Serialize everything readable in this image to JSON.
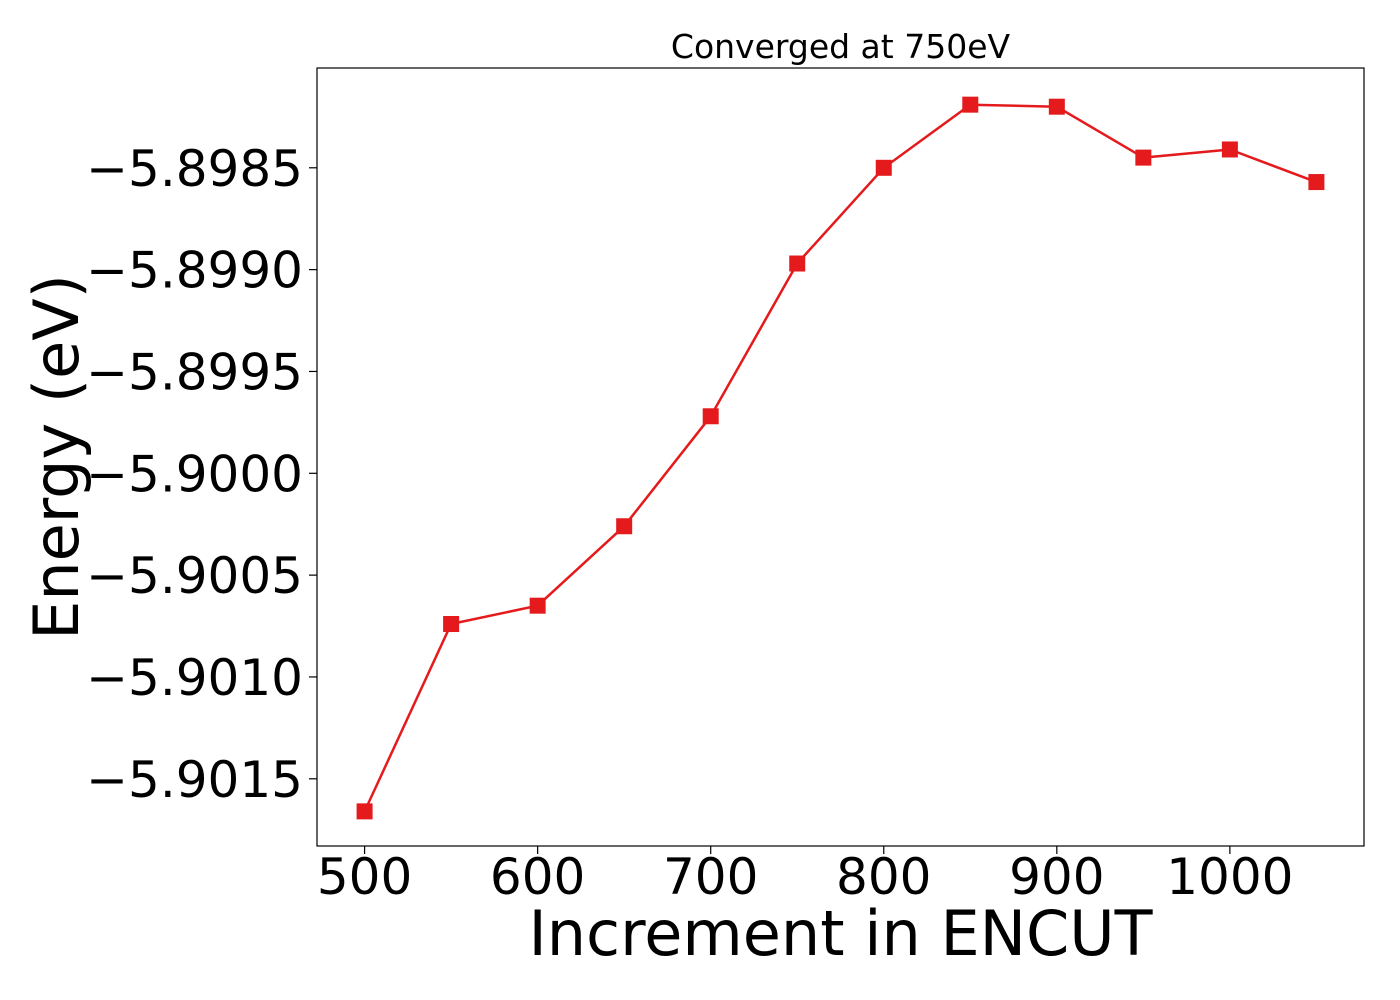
{
  "chart_data": {
    "type": "line",
    "title": "Converged at 750eV",
    "xlabel": "Increment in ENCUT",
    "ylabel": "Energy (eV)",
    "x_ticks": [
      500,
      600,
      700,
      800,
      900,
      1000
    ],
    "x_tick_labels": [
      "500",
      "600",
      "700",
      "800",
      "900",
      "1000"
    ],
    "y_ticks": [
      -5.9015,
      -5.901,
      -5.9005,
      -5.9,
      -5.8995,
      -5.899,
      -5.8985
    ],
    "y_tick_labels": [
      "−5.9015",
      "−5.9010",
      "−5.9005",
      "−5.9000",
      "−5.8995",
      "−5.8990",
      "−5.8985"
    ],
    "xlim": [
      472.5,
      1077.5
    ],
    "ylim": [
      -5.90183,
      -5.89801
    ],
    "grid": false,
    "series": [
      {
        "color": "#e41a1c",
        "marker": "square",
        "x": [
          500,
          550,
          600,
          650,
          700,
          750,
          800,
          850,
          900,
          950,
          1000,
          1050
        ],
        "y": [
          -5.90166,
          -5.90074,
          -5.90065,
          -5.90026,
          -5.89972,
          -5.89897,
          -5.8985,
          -5.89819,
          -5.8982,
          -5.89845,
          -5.89841,
          -5.89857
        ]
      }
    ]
  }
}
